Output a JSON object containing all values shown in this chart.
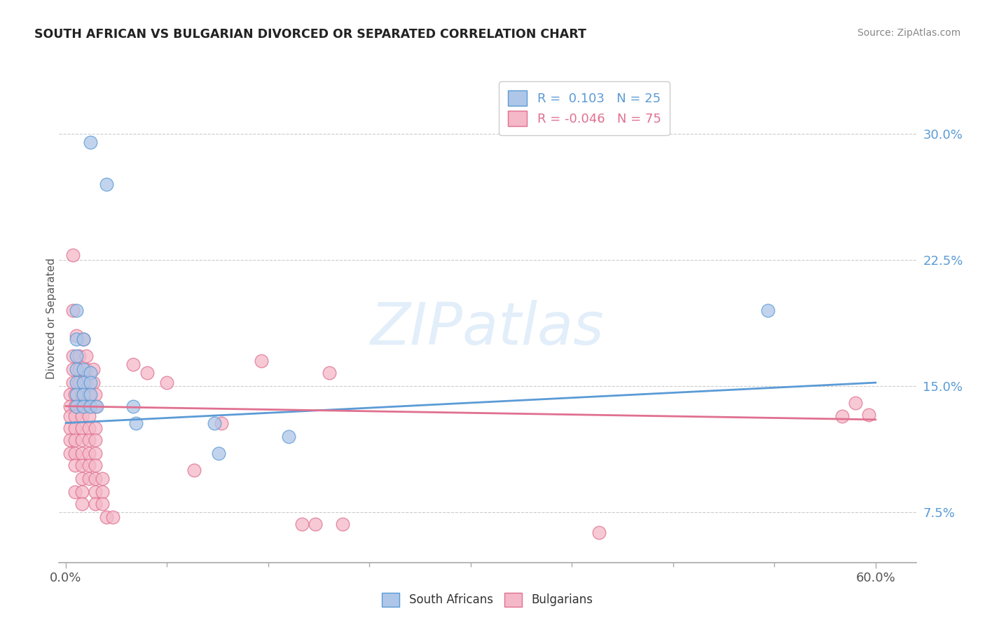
{
  "title": "SOUTH AFRICAN VS BULGARIAN DIVORCED OR SEPARATED CORRELATION CHART",
  "source": "Source: ZipAtlas.com",
  "ylabel": "Divorced or Separated",
  "xlim": [
    -0.005,
    0.63
  ],
  "ylim": [
    0.045,
    0.335
  ],
  "ytick_positions": [
    0.075,
    0.15,
    0.225,
    0.3
  ],
  "xtick_positions": [
    0.0,
    0.6
  ],
  "xtick_minor": [
    0.075,
    0.15,
    0.225,
    0.3,
    0.375,
    0.45,
    0.525
  ],
  "blue_scatter": [
    [
      0.018,
      0.295
    ],
    [
      0.008,
      0.195
    ],
    [
      0.008,
      0.178
    ],
    [
      0.013,
      0.178
    ],
    [
      0.008,
      0.168
    ],
    [
      0.008,
      0.16
    ],
    [
      0.013,
      0.16
    ],
    [
      0.018,
      0.158
    ],
    [
      0.008,
      0.152
    ],
    [
      0.013,
      0.152
    ],
    [
      0.018,
      0.152
    ],
    [
      0.008,
      0.145
    ],
    [
      0.013,
      0.145
    ],
    [
      0.018,
      0.145
    ],
    [
      0.008,
      0.138
    ],
    [
      0.013,
      0.138
    ],
    [
      0.018,
      0.138
    ],
    [
      0.023,
      0.138
    ],
    [
      0.03,
      0.27
    ],
    [
      0.05,
      0.138
    ],
    [
      0.052,
      0.128
    ],
    [
      0.11,
      0.128
    ],
    [
      0.113,
      0.11
    ],
    [
      0.165,
      0.12
    ],
    [
      0.52,
      0.195
    ]
  ],
  "pink_scatter": [
    [
      0.005,
      0.228
    ],
    [
      0.005,
      0.195
    ],
    [
      0.008,
      0.18
    ],
    [
      0.013,
      0.178
    ],
    [
      0.005,
      0.168
    ],
    [
      0.01,
      0.168
    ],
    [
      0.015,
      0.168
    ],
    [
      0.005,
      0.16
    ],
    [
      0.01,
      0.16
    ],
    [
      0.015,
      0.16
    ],
    [
      0.02,
      0.16
    ],
    [
      0.005,
      0.152
    ],
    [
      0.01,
      0.152
    ],
    [
      0.015,
      0.152
    ],
    [
      0.02,
      0.152
    ],
    [
      0.003,
      0.145
    ],
    [
      0.007,
      0.145
    ],
    [
      0.012,
      0.145
    ],
    [
      0.017,
      0.145
    ],
    [
      0.022,
      0.145
    ],
    [
      0.003,
      0.138
    ],
    [
      0.007,
      0.138
    ],
    [
      0.012,
      0.138
    ],
    [
      0.017,
      0.138
    ],
    [
      0.022,
      0.138
    ],
    [
      0.003,
      0.132
    ],
    [
      0.007,
      0.132
    ],
    [
      0.012,
      0.132
    ],
    [
      0.017,
      0.132
    ],
    [
      0.003,
      0.125
    ],
    [
      0.007,
      0.125
    ],
    [
      0.012,
      0.125
    ],
    [
      0.017,
      0.125
    ],
    [
      0.022,
      0.125
    ],
    [
      0.003,
      0.118
    ],
    [
      0.007,
      0.118
    ],
    [
      0.012,
      0.118
    ],
    [
      0.017,
      0.118
    ],
    [
      0.022,
      0.118
    ],
    [
      0.003,
      0.11
    ],
    [
      0.007,
      0.11
    ],
    [
      0.012,
      0.11
    ],
    [
      0.017,
      0.11
    ],
    [
      0.022,
      0.11
    ],
    [
      0.007,
      0.103
    ],
    [
      0.012,
      0.103
    ],
    [
      0.017,
      0.103
    ],
    [
      0.022,
      0.103
    ],
    [
      0.012,
      0.095
    ],
    [
      0.017,
      0.095
    ],
    [
      0.022,
      0.095
    ],
    [
      0.027,
      0.095
    ],
    [
      0.007,
      0.087
    ],
    [
      0.012,
      0.087
    ],
    [
      0.022,
      0.087
    ],
    [
      0.027,
      0.087
    ],
    [
      0.012,
      0.08
    ],
    [
      0.022,
      0.08
    ],
    [
      0.027,
      0.08
    ],
    [
      0.03,
      0.072
    ],
    [
      0.035,
      0.072
    ],
    [
      0.05,
      0.163
    ],
    [
      0.06,
      0.158
    ],
    [
      0.075,
      0.152
    ],
    [
      0.095,
      0.1
    ],
    [
      0.115,
      0.128
    ],
    [
      0.145,
      0.165
    ],
    [
      0.175,
      0.068
    ],
    [
      0.185,
      0.068
    ],
    [
      0.195,
      0.158
    ],
    [
      0.205,
      0.068
    ],
    [
      0.395,
      0.063
    ],
    [
      0.575,
      0.132
    ],
    [
      0.585,
      0.14
    ],
    [
      0.595,
      0.133
    ]
  ],
  "blue_line_x": [
    0.0,
    0.6
  ],
  "blue_line_y": [
    0.128,
    0.152
  ],
  "pink_line_x": [
    0.0,
    0.6
  ],
  "pink_line_y": [
    0.138,
    0.13
  ],
  "blue_color": "#5b9bd5",
  "blue_fill": "#aec6e8",
  "pink_color": "#e07090",
  "pink_fill": "#f4b8c8",
  "grid_color": "#cccccc",
  "legend_r1": "R =  0.103   N = 25",
  "legend_r2": "R = -0.046   N = 75",
  "legend_label_south": "South Africans",
  "legend_label_bulg": "Bulgarians",
  "background_color": "#ffffff",
  "watermark_text": "ZIPatlas"
}
